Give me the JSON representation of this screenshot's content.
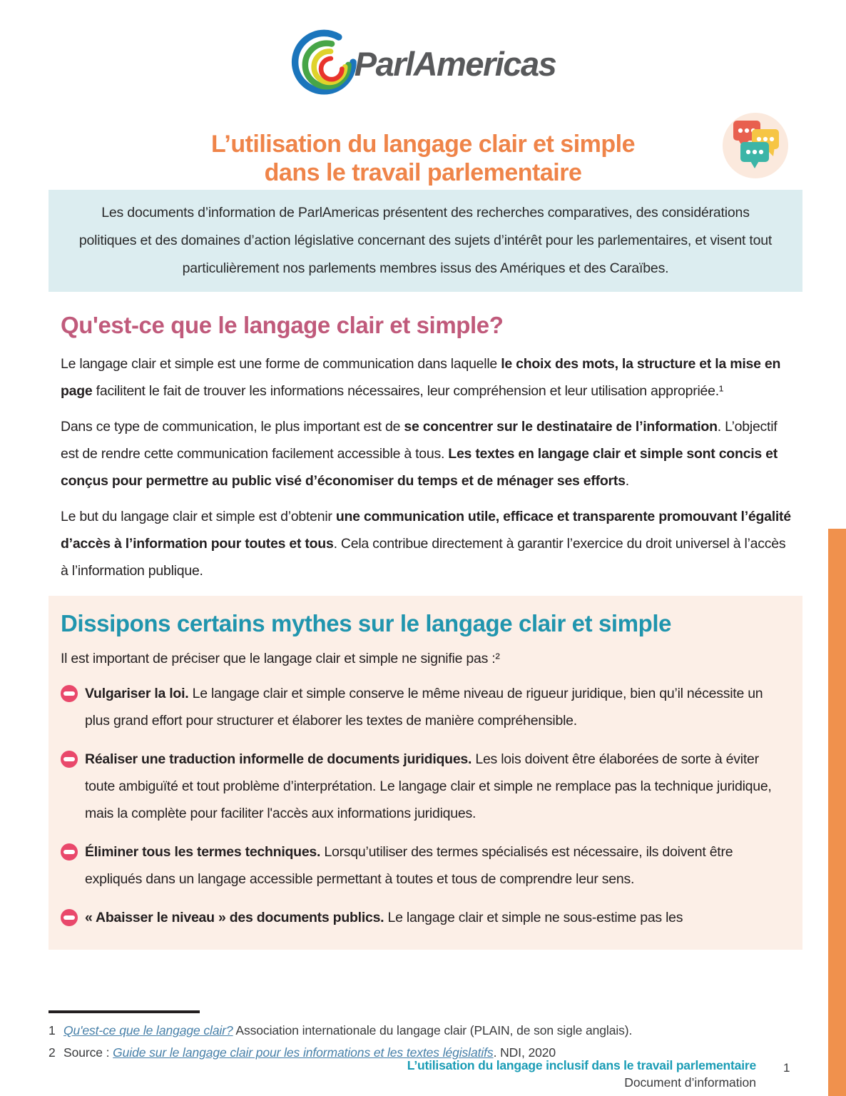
{
  "header": {
    "logo_text": "ParlAmericas",
    "title_line1": "L’utilisation du langage clair et simple",
    "title_line2": "dans le travail parlementaire"
  },
  "intro_box": {
    "text": "Les documents d’information de ParlAmericas présentent des recherches comparatives, des considérations politiques et des domaines d’action législative concernant des sujets d’intérêt pour les parlementaires, et visent tout particulièrement nos parlements membres issus des Amériques et des Caraïbes."
  },
  "section_what": {
    "heading": "Qu'est-ce que le langage clair et simple?",
    "paragraphs": [
      {
        "segments": [
          {
            "text": "Le langage clair et simple est une forme de communication dans laquelle "
          },
          {
            "text": "le choix des mots, la structure et la mise en page",
            "bold": true
          },
          {
            "text": " facilitent le fait de trouver les informations nécessaires, leur compréhension et leur utilisation appropriée.¹"
          }
        ]
      },
      {
        "segments": [
          {
            "text": "Dans ce type de communication, le plus important est de "
          },
          {
            "text": "se concentrer sur le destinataire de l’information",
            "bold": true
          },
          {
            "text": ". L’objectif est de rendre cette communication facilement accessible à tous. "
          },
          {
            "text": "Les textes en langage clair et simple sont concis et conçus pour permettre au public visé d’économiser du temps et de ménager ses efforts",
            "bold": true
          },
          {
            "text": "."
          }
        ]
      },
      {
        "segments": [
          {
            "text": "Le but du langage clair et simple est d’obtenir "
          },
          {
            "text": "une communication utile, efficace et transparente promouvant l’égalité d’accès à l’information pour toutes et tous",
            "bold": true
          },
          {
            "text": ". Cela contribue directement à garantir l’exercice du droit universel à l’accès à l’information publique."
          }
        ]
      }
    ]
  },
  "myths_box": {
    "heading": "Dissipons certains mythes sur le langage clair et simple",
    "intro": "Il est important de préciser que le langage clair et simple ne signifie pas :²",
    "items": [
      {
        "segments": [
          {
            "text": "Vulgariser la loi. ",
            "bold": true
          },
          {
            "text": "Le langage clair et simple conserve le même niveau de rigueur juridique, bien qu’il nécessite un plus grand effort pour structurer et élaborer les textes de manière compréhensible."
          }
        ]
      },
      {
        "segments": [
          {
            "text": "Réaliser une traduction informelle de documents juridiques. ",
            "bold": true
          },
          {
            "text": "Les lois doivent être élaborées de sorte à éviter toute ambiguïté et tout problème d’interprétation. Le langage clair et simple ne remplace pas la technique juridique, mais la complète pour faciliter l'accès aux informations juridiques."
          }
        ]
      },
      {
        "segments": [
          {
            "text": "Éliminer tous les termes techniques. ",
            "bold": true
          },
          {
            "text": "Lorsqu’utiliser des termes spécialisés est nécessaire, ils doivent être expliqués dans un langage accessible permettant à toutes et tous de comprendre leur sens."
          }
        ]
      },
      {
        "segments": [
          {
            "text": "« Abaisser le niveau » des documents publics. ",
            "bold": true
          },
          {
            "text": "Le langage clair et simple ne sous-estime pas les"
          }
        ]
      }
    ]
  },
  "footnotes": [
    {
      "number": "1",
      "segments": [
        {
          "text": "Qu'est-ce que le langage clair?",
          "link": true
        },
        {
          "text": " Association internationale du langage clair (PLAIN, de son sigle anglais)."
        }
      ]
    },
    {
      "number": "2",
      "segments": [
        {
          "text": "Source : "
        },
        {
          "text": "Guide sur le langage clair pour les informations et les textes législatifs",
          "link": true
        },
        {
          "text": ". NDI, 2020"
        }
      ]
    }
  ],
  "footer": {
    "title": "L’utilisation du langage inclusif dans le travail parlementaire",
    "subtitle": "Document d’information",
    "page_number": "1"
  },
  "colors": {
    "title_orange": "#EF8449",
    "sidebar_orange": "#F0914D",
    "intro_box_bg": "#DCEDF0",
    "myths_box_bg": "#FCEFE7",
    "heading_pink": "#C05A7B",
    "heading_teal": "#2095AE",
    "footer_teal": "#1A9CB5",
    "no_entry_pink": "#E9486B",
    "link_blue": "#467FA8"
  }
}
